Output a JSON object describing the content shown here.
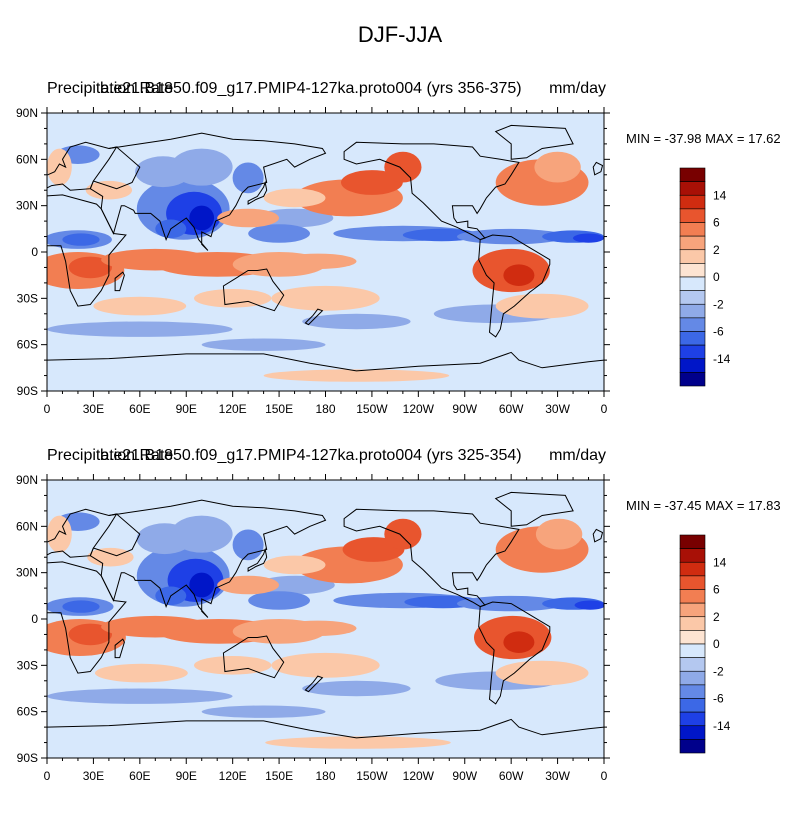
{
  "title": "DJF-JJA",
  "colormap": [
    "#00008b",
    "#0016c8",
    "#1e40e6",
    "#3c68e6",
    "#6489e6",
    "#8faae8",
    "#b4c8f0",
    "#d7e8fc",
    "#fde4d2",
    "#fbc8a8",
    "#f7a47c",
    "#f27e52",
    "#e8552e",
    "#d02c10",
    "#a81006",
    "#780000"
  ],
  "colorbar_labels": [
    "14",
    "6",
    "2",
    "0",
    "-2",
    "-6",
    "-14"
  ],
  "x_tick_labels": [
    "0",
    "30E",
    "60E",
    "90E",
    "120E",
    "150E",
    "180",
    "150W",
    "120W",
    "90W",
    "60W",
    "30W",
    "0"
  ],
  "y_tick_labels": [
    "90N",
    "60N",
    "30N",
    "0",
    "30S",
    "60S",
    "90S"
  ],
  "panels": [
    {
      "left_label": "Precipitation Rate",
      "center_label": "b.e21.B1850.f09_g17.PMIP4-127ka.proto004 (yrs 356-375)",
      "right_label": "mm/day",
      "min": "-37.98",
      "max": "17.62",
      "minmax_text": "MIN = -37.98 MAX =  17.62"
    },
    {
      "left_label": "Precipitation Rate",
      "center_label": "b.e21.B1850.f09_g17.PMIP4-127ka.proto004 (yrs 325-354)",
      "right_label": "mm/day",
      "min": "-37.45",
      "max": "17.83",
      "minmax_text": "MIN = -37.45 MAX =  17.83"
    }
  ]
}
